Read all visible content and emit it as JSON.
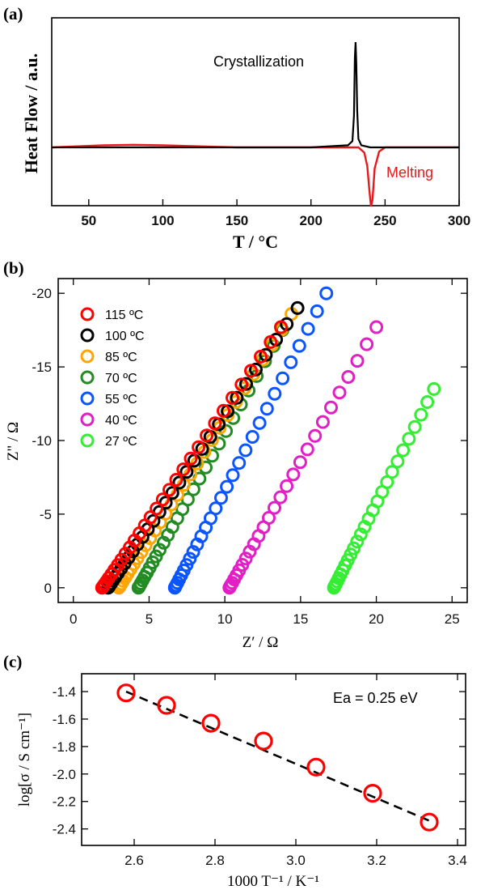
{
  "chart_data": [
    {
      "panel": "(a)",
      "type": "line",
      "xlabel": "T / °C",
      "ylabel": "Heat Flow / a.u.",
      "xlim": [
        25,
        300
      ],
      "xticks": [
        50,
        100,
        150,
        200,
        250,
        300
      ],
      "annotations": [
        {
          "text": "Crystallization",
          "color": "#000000"
        },
        {
          "text": "Melting",
          "color": "#e8191a"
        }
      ],
      "series": [
        {
          "name": "Crystallization",
          "color": "#000000",
          "baseline": 0,
          "x": [
            25,
            100,
            200,
            225,
            228,
            229,
            229.6,
            230.1,
            230.6,
            231.2,
            232,
            234,
            240,
            300
          ],
          "y": [
            0,
            0,
            0,
            0.02,
            0.06,
            0.3,
            0.85,
            1.0,
            0.8,
            0.35,
            0.08,
            0.02,
            0,
            0
          ]
        },
        {
          "name": "Melting",
          "color": "#e8191a",
          "baseline": 0,
          "x": [
            25,
            60,
            80,
            100,
            150,
            200,
            232,
            236,
            238,
            239.5,
            240.5,
            241.5,
            243,
            246,
            250,
            300
          ],
          "y": [
            0,
            0.02,
            0.025,
            0.02,
            0,
            0,
            0,
            -0.05,
            -0.18,
            -0.42,
            -0.56,
            -0.5,
            -0.2,
            -0.04,
            0,
            0
          ]
        }
      ]
    },
    {
      "panel": "(b)",
      "type": "scatter",
      "xlabel": "Z′ / Ω",
      "ylabel": "Z\" / Ω",
      "xlim": [
        -1,
        26
      ],
      "ylim": [
        1,
        -21
      ],
      "xticks": [
        0,
        5,
        10,
        15,
        20,
        25
      ],
      "yticks": [
        0,
        -5,
        -10,
        -15,
        -20
      ],
      "series": [
        {
          "name": "115 ºC",
          "color": "#ff0000",
          "start": [
            1.9,
            0
          ],
          "end": [
            13.7,
            -17.7
          ],
          "count": 32
        },
        {
          "name": "100 ºC",
          "color": "#000000",
          "start": [
            2.3,
            0
          ],
          "end": [
            14.8,
            -19.0
          ],
          "count": 32
        },
        {
          "name": "85 ºC",
          "color": "#ffa500",
          "start": [
            3.0,
            0
          ],
          "end": [
            14.4,
            -18.6
          ],
          "count": 32
        },
        {
          "name": "70 ºC",
          "color": "#228b22",
          "start": [
            4.3,
            0
          ],
          "end": [
            13.8,
            -17.5
          ],
          "count": 30
        },
        {
          "name": "55 ºC",
          "color": "#0a55ff",
          "start": [
            6.7,
            0
          ],
          "end": [
            16.7,
            -20.0
          ],
          "count": 30
        },
        {
          "name": "40 ºC",
          "color": "#e21fc4",
          "start": [
            10.3,
            0
          ],
          "end": [
            20.0,
            -17.7
          ],
          "count": 28
        },
        {
          "name": "27 ºC",
          "color": "#33ee33",
          "start": [
            17.2,
            0
          ],
          "end": [
            23.8,
            -13.5
          ],
          "count": 28
        }
      ]
    },
    {
      "panel": "(c)",
      "type": "scatter",
      "xlabel": "1000 T⁻¹ / K⁻¹",
      "ylabel": "log[σ / S cm⁻¹]",
      "xlim": [
        2.47,
        3.42
      ],
      "ylim": [
        -2.52,
        -1.27
      ],
      "xticks": [
        2.6,
        2.8,
        3.0,
        3.2,
        3.4
      ],
      "yticks": [
        -1.4,
        -1.6,
        -1.8,
        -2.0,
        -2.2,
        -2.4
      ],
      "annotation": "Ea = 0.25 eV",
      "x": [
        2.58,
        2.68,
        2.79,
        2.92,
        3.05,
        3.19,
        3.33
      ],
      "y": [
        -1.41,
        -1.5,
        -1.63,
        -1.76,
        -1.95,
        -2.14,
        -2.35
      ],
      "fit": {
        "x": [
          2.58,
          3.33
        ],
        "y": [
          -1.4,
          -2.34
        ]
      }
    }
  ]
}
